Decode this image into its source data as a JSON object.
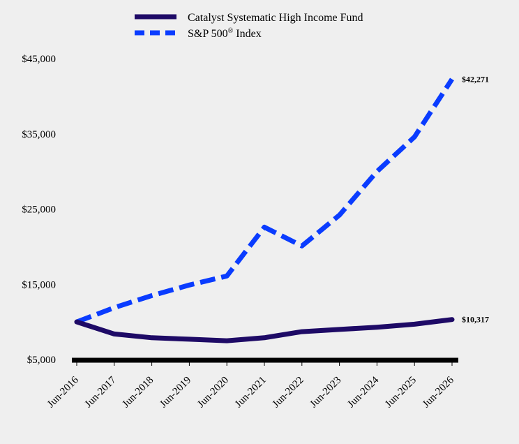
{
  "chart_data": {
    "type": "line",
    "x": [
      "Jun-2016",
      "Jun-2017",
      "Jun-2018",
      "Jun-2019",
      "Jun-2020",
      "Jun-2021",
      "Jun-2022",
      "Jun-2023",
      "Jun-2024",
      "Jun-2025",
      "Jun-2026"
    ],
    "series": [
      {
        "name": "Catalyst Systematic High Income Fund",
        "values": [
          10000,
          8400,
          7900,
          7700,
          7500,
          7900,
          8700,
          9000,
          9300,
          9700,
          10317
        ],
        "color": "#1e0a66",
        "style": "solid",
        "end_label": "$10,317"
      },
      {
        "name": "S&P 500",
        "name_superscript": "®",
        "name_suffix": " Index",
        "values": [
          10000,
          11900,
          13500,
          14900,
          16100,
          22600,
          20100,
          24200,
          30000,
          34600,
          42271
        ],
        "color": "#0a3cff",
        "style": "dashed",
        "end_label": "$42,271"
      }
    ],
    "yticks": [
      "$5,000",
      "$15,000",
      "$25,000",
      "$35,000",
      "$45,000"
    ],
    "ytick_values": [
      5000,
      15000,
      25000,
      35000,
      45000
    ],
    "ylim": [
      5000,
      45000
    ],
    "grid": false,
    "legend_position": "top-center"
  }
}
